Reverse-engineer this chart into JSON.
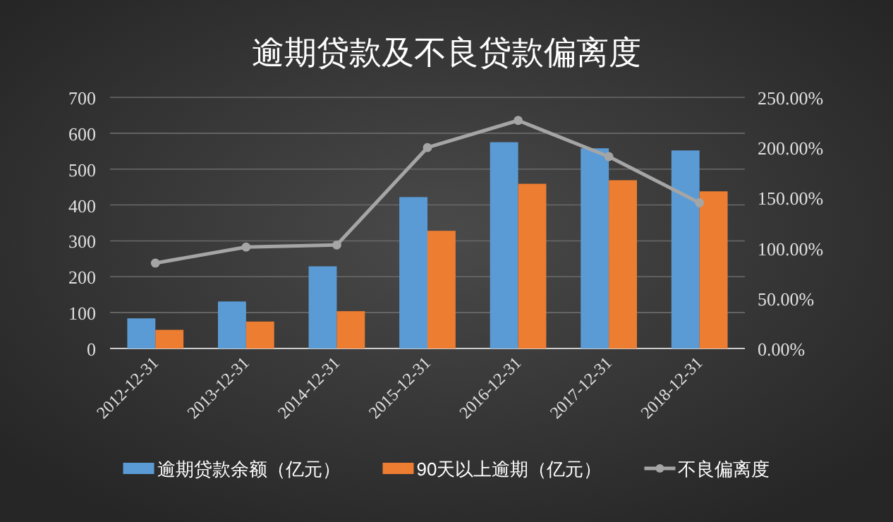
{
  "chart_data": {
    "type": "bar",
    "title": "逾期贷款及不良贷款偏离度",
    "categories": [
      "2012-12-31",
      "2013-12-31",
      "2014-12-31",
      "2015-12-31",
      "2016-12-31",
      "2017-12-31",
      "2018-12-31"
    ],
    "series": [
      {
        "name": "逾期贷款余额（亿元）",
        "color": "#5b9bd5",
        "values": [
          84,
          131,
          229,
          422,
          575,
          558,
          552
        ]
      },
      {
        "name": "90天以上逾期（亿元）",
        "color": "#ed7d31",
        "values": [
          52,
          75,
          104,
          328,
          459,
          469,
          438
        ]
      },
      {
        "name": "不良偏离度",
        "type": "line",
        "axis": "y2",
        "color": "#a5a5a5",
        "marker": "circle",
        "values": [
          85,
          101,
          103,
          200,
          227,
          191,
          145
        ]
      }
    ],
    "ylim": [
      0,
      700
    ],
    "yticks": [
      0,
      100,
      200,
      300,
      400,
      500,
      600,
      700
    ],
    "y2lim": [
      0,
      250
    ],
    "y2ticks": [
      {
        "value": 0,
        "label": "0.00%"
      },
      {
        "value": 50,
        "label": "50.00%"
      },
      {
        "value": 100,
        "label": "100.00%"
      },
      {
        "value": 150,
        "label": "150.00%"
      },
      {
        "value": 200,
        "label": "200.00%"
      },
      {
        "value": 250,
        "label": "250.00%"
      }
    ],
    "grid": "y",
    "legend": "bottom"
  }
}
